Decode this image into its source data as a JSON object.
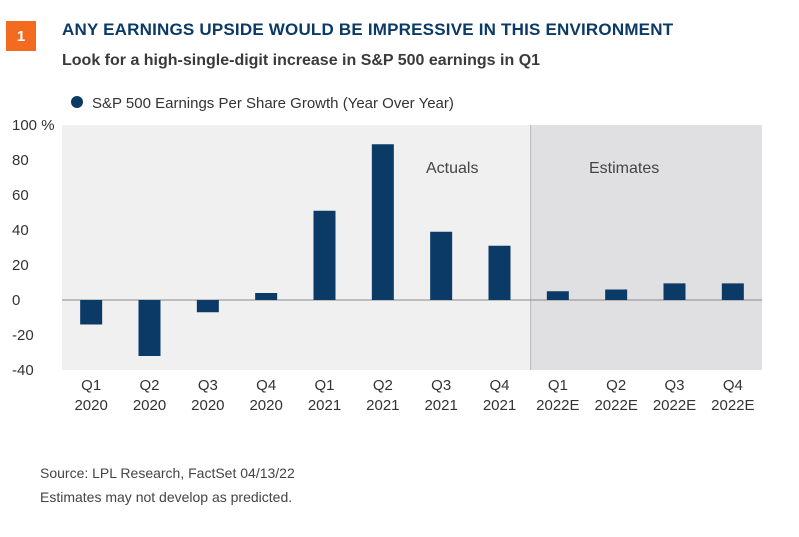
{
  "header": {
    "badge": "1",
    "title": "ANY EARNINGS UPSIDE WOULD BE IMPRESSIVE IN THIS ENVIRONMENT",
    "subtitle": "Look for a high-single-digit increase in S&P 500 earnings in Q1"
  },
  "footer": {
    "source": "Source: LPL Research, FactSet  04/13/22",
    "note": "Estimates may not develop as predicted."
  },
  "colors": {
    "bar": "#0b3a66",
    "badge": "#f26b21",
    "actuals_bg": "#f0f0f0",
    "estimates_bg": "#e0e0e3",
    "title": "#0b3a66"
  },
  "chart_data": {
    "type": "bar",
    "title": "",
    "legend": [
      "S&P 500 Earnings Per Share Growth (Year Over Year)"
    ],
    "legend_position": "top-left",
    "categories": [
      [
        "Q1",
        "2020"
      ],
      [
        "Q2",
        "2020"
      ],
      [
        "Q3",
        "2020"
      ],
      [
        "Q4",
        "2020"
      ],
      [
        "Q1",
        "2021"
      ],
      [
        "Q2",
        "2021"
      ],
      [
        "Q3",
        "2021"
      ],
      [
        "Q4",
        "2021"
      ],
      [
        "Q1",
        "2022E"
      ],
      [
        "Q2",
        "2022E"
      ],
      [
        "Q3",
        "2022E"
      ],
      [
        "Q4",
        "2022E"
      ]
    ],
    "series": [
      {
        "name": "S&P 500 Earnings Per Share Growth (Year Over Year)",
        "values": [
          -14,
          -32,
          -7,
          4,
          51,
          89,
          39,
          31,
          5,
          6,
          9.5,
          9.5
        ]
      }
    ],
    "ylim": [
      -40,
      100
    ],
    "yticks": [
      100,
      80,
      60,
      40,
      20,
      0,
      -20,
      -40
    ],
    "ytick_labels": [
      "100 %",
      "80",
      "60",
      "40",
      "20",
      "0",
      "-20",
      "-40"
    ],
    "annotations": [
      "Actuals",
      "Estimates"
    ],
    "estimates_start_index": 8,
    "grid": false
  }
}
